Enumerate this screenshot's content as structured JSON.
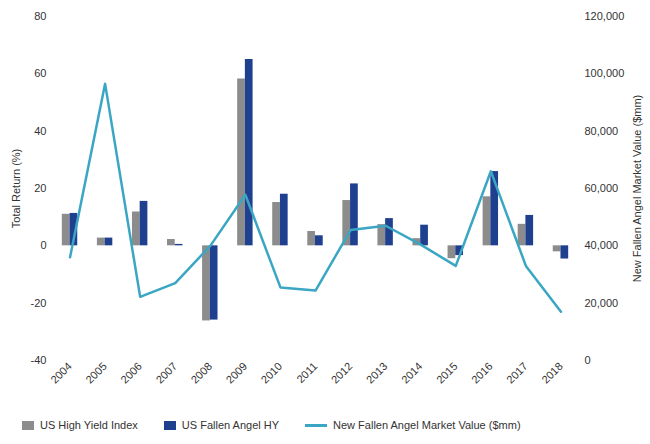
{
  "chart_data": {
    "type": "bar",
    "categories": [
      "2004",
      "2005",
      "2006",
      "2007",
      "2008",
      "2009",
      "2010",
      "2011",
      "2012",
      "2013",
      "2014",
      "2015",
      "2016",
      "2017",
      "2018"
    ],
    "series": [
      {
        "name": "US High Yield Index",
        "color": "#8c8c8c",
        "values": [
          11.0,
          2.7,
          11.8,
          2.2,
          -26.2,
          58.2,
          15.1,
          5.0,
          15.8,
          7.4,
          2.5,
          -4.5,
          17.1,
          7.5,
          -2.1
        ]
      },
      {
        "name": "US Fallen Angel HY",
        "color": "#1f3f8f",
        "values": [
          11.3,
          2.7,
          15.5,
          0.5,
          -25.9,
          65.0,
          18.0,
          3.5,
          21.6,
          9.5,
          7.2,
          -3.4,
          25.9,
          10.6,
          -4.6
        ]
      },
      {
        "name": "New Fallen Angel Market Value ($mm)",
        "type": "line",
        "axis": "y2",
        "color": "#3aa6c4",
        "values": [
          36000,
          96500,
          22200,
          27000,
          40000,
          57800,
          25500,
          24400,
          45500,
          47000,
          40400,
          33000,
          66000,
          33000,
          17000
        ]
      }
    ],
    "ylabel": "Total Return (%)",
    "y2label": "New Fallen Angel Market Value ($mm)",
    "ylim": [
      -40,
      80
    ],
    "yticks": [
      -40,
      -20,
      0,
      20,
      40,
      60,
      80
    ],
    "y2lim": [
      0,
      120000
    ],
    "y2ticks": [
      0,
      {
        "value": 20000,
        "label": "20,000"
      },
      {
        "value": 40000,
        "label": "40,000"
      },
      {
        "value": 60000,
        "label": "60,000"
      },
      {
        "value": 80000,
        "label": "80,000"
      },
      {
        "value": 100000,
        "label": "100,000"
      },
      {
        "value": 120000,
        "label": "120,000"
      }
    ],
    "legend": "bottom"
  }
}
